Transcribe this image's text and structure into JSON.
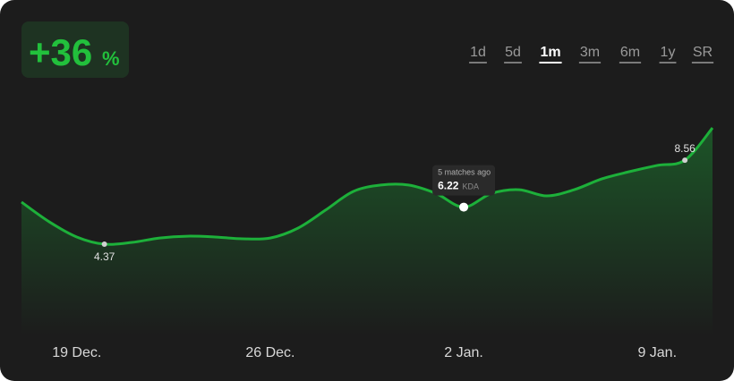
{
  "chart_data": {
    "type": "area",
    "headline": {
      "value": "+36",
      "unit": "%"
    },
    "ranges": [
      "1d",
      "5d",
      "1m",
      "3m",
      "6m",
      "1y",
      "SR"
    ],
    "active_range_index": 2,
    "categories": [
      null,
      null,
      "19 Dec.",
      null,
      null,
      null,
      null,
      null,
      null,
      "26 Dec.",
      null,
      null,
      null,
      null,
      null,
      null,
      "2 Jan.",
      null,
      null,
      null,
      null,
      null,
      null,
      "9 Jan.",
      null,
      null
    ],
    "values": [
      6.47,
      5.49,
      4.73,
      4.37,
      4.46,
      4.68,
      4.77,
      4.73,
      4.64,
      4.68,
      5.17,
      6.07,
      7.0,
      7.32,
      7.32,
      6.9,
      6.22,
      6.9,
      7.09,
      6.78,
      7.09,
      7.63,
      7.99,
      8.3,
      8.56,
      10.17
    ],
    "value_labels": [
      null,
      null,
      null,
      "4.37",
      null,
      null,
      null,
      null,
      null,
      null,
      null,
      null,
      null,
      null,
      null,
      null,
      "6.22",
      null,
      null,
      null,
      null,
      null,
      null,
      null,
      "8.56",
      null
    ],
    "tooltip": {
      "index": 16,
      "title": "5 matches ago",
      "unit": "KDA"
    },
    "color": "#1db03a",
    "ylim": [
      0,
      12
    ]
  }
}
